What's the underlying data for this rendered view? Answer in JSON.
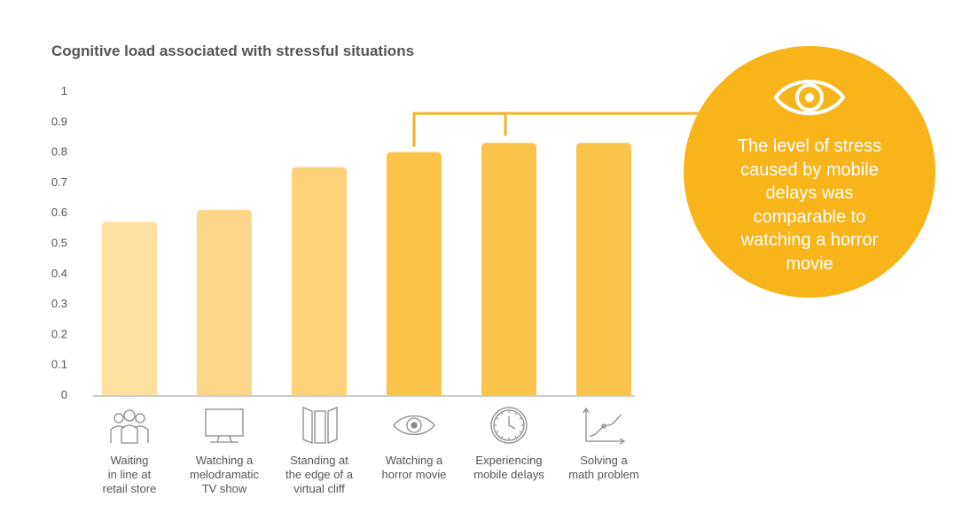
{
  "chart_data": {
    "type": "bar",
    "title": "Cognitive load associated with stressful situations",
    "xlabel": "",
    "ylabel": "",
    "ylim": [
      0,
      1
    ],
    "yticks": [
      "0",
      "0.1",
      "0.2",
      "0.3",
      "0.4",
      "0.5",
      "0.6",
      "0.7",
      "0.8",
      "0.9",
      "1"
    ],
    "categories": [
      "Waiting\nin line at\nretail store",
      "Watching a\nmelodramatic\nTV show",
      "Standing at\nthe edge of a\nvirtual cliff",
      "Watching a\nhorror movie",
      "Experiencing\nmobile delays",
      "Solving a\nmath problem"
    ],
    "values": [
      0.57,
      0.61,
      0.75,
      0.8,
      0.83,
      0.83
    ],
    "colors": [
      "#fde0a0",
      "#fdd68a",
      "#fdd278",
      "#fbc34a",
      "#fbc34a",
      "#fbc34a"
    ],
    "icons": [
      "people-icon",
      "tv-icon",
      "cliff-icon",
      "eye-icon",
      "clock-icon",
      "graph-icon"
    ],
    "grid": false,
    "legend": "none",
    "annotation": {
      "text": "The level of stress caused by mobile delays was comparable to watching a horror movie",
      "icon": "eye-icon",
      "color": "#f7b51b",
      "bracket_color": "#f2b31d"
    }
  }
}
